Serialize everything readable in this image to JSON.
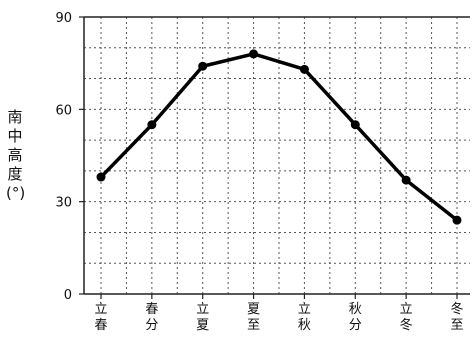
{
  "chart_data": {
    "type": "line",
    "title": "",
    "xlabel": "",
    "ylabel": "南中高度(°)",
    "ylim": [
      0,
      90
    ],
    "y_ticks": [
      "0",
      "30",
      "60",
      "90"
    ],
    "categories": [
      "立春",
      "春分",
      "立夏",
      "夏至",
      "立秋",
      "秋分",
      "立冬",
      "冬至"
    ],
    "series": [
      {
        "values": [
          38,
          55,
          74,
          78,
          73,
          55,
          37,
          24
        ]
      }
    ],
    "grid": true,
    "line_color": "#000000"
  }
}
